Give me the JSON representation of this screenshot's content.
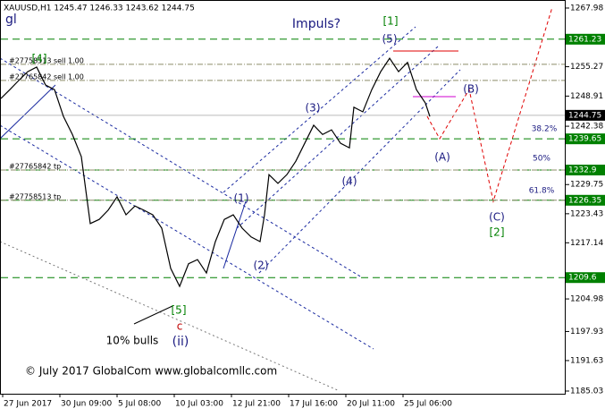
{
  "chart_data": {
    "type": "line",
    "header": "XAUUSD,H1  1245.47 1246.33 1243.62 1244.75",
    "title": "Impuls?",
    "corner_text": "gl",
    "copyright": "© July 2017 GlobalCom www.globalcomllc.com",
    "x": [
      0,
      5,
      10,
      15,
      20,
      25,
      30,
      35,
      40,
      45,
      50,
      55,
      60,
      65,
      70,
      75,
      80,
      85,
      90,
      95,
      100,
      105,
      110,
      115,
      120,
      125,
      130,
      135,
      140,
      145,
      147.5,
      150,
      155,
      160,
      165,
      170,
      175,
      180,
      185,
      190,
      195,
      197.5,
      202.5,
      207.5,
      212.5,
      217.5,
      222.5,
      227.5,
      232.5,
      237.5,
      240
    ],
    "series": [
      {
        "color": "#000000",
        "values": [
          1248.4,
          1250.3,
          1252.3,
          1254.2,
          1255.2,
          1251.3,
          1250.3,
          1244.5,
          1240.6,
          1235.8,
          1221.3,
          1222.2,
          1224.2,
          1227.1,
          1223.2,
          1225.1,
          1224.2,
          1223.2,
          1220.3,
          1211.6,
          1207.7,
          1212.6,
          1213.5,
          1210.6,
          1217.4,
          1222.2,
          1223.2,
          1220.3,
          1218.4,
          1217.4,
          1223.2,
          1231.9,
          1230.0,
          1231.9,
          1234.8,
          1238.7,
          1242.6,
          1240.6,
          1241.6,
          1238.7,
          1237.7,
          1246.5,
          1245.5,
          1250.3,
          1254.2,
          1257.1,
          1254.2,
          1256.2,
          1250.3,
          1247.4,
          1244.5
        ]
      }
    ],
    "xlim": [
      0,
      316
    ],
    "xticks": [
      {
        "value": 1,
        "label": "27 Jun 2017"
      },
      {
        "value": 33,
        "label": "30 Jun 09:00"
      },
      {
        "value": 65,
        "label": "5 Jul 08:00"
      },
      {
        "value": 97,
        "label": "10 Jul 03:00"
      },
      {
        "value": 129,
        "label": "12 Jul 21:00"
      },
      {
        "value": 161,
        "label": "17 Jul 16:00"
      },
      {
        "value": 193,
        "label": "20 Jul 11:00"
      },
      {
        "value": 225,
        "label": "25 Jul 06:00"
      }
    ],
    "ylim": [
      1184.45,
      1269.72
    ],
    "yticks": [
      1267.98,
      1255.27,
      1248.91,
      1242.38,
      1229.75,
      1223.43,
      1217.14,
      1204.98,
      1197.93,
      1191.63,
      1185.03
    ],
    "last": 1244.75,
    "levels": [
      1261.23,
      1239.65,
      1232.9,
      1226.35,
      1209.6
    ],
    "level_color": "#008000",
    "orders": [
      {
        "label": "#27758513 sell 1.00",
        "value": 1255.8
      },
      {
        "label": "#27765842 sell 1.00",
        "value": 1252.3
      },
      {
        "label": "#27765842 tp",
        "value": 1232.9
      },
      {
        "label": "#27758513 tp",
        "value": 1226.35
      }
    ],
    "fib_labels": [
      "38.2%",
      "50%",
      "61.8%"
    ],
    "waves": [
      "[1]",
      "(5)",
      "(3)",
      "(4)",
      "(1)",
      "(2)",
      "[5]",
      "c",
      "(ii)",
      "[4]",
      "(B)",
      "(A)",
      "(C)",
      "[2]",
      "10% bulls"
    ]
  }
}
